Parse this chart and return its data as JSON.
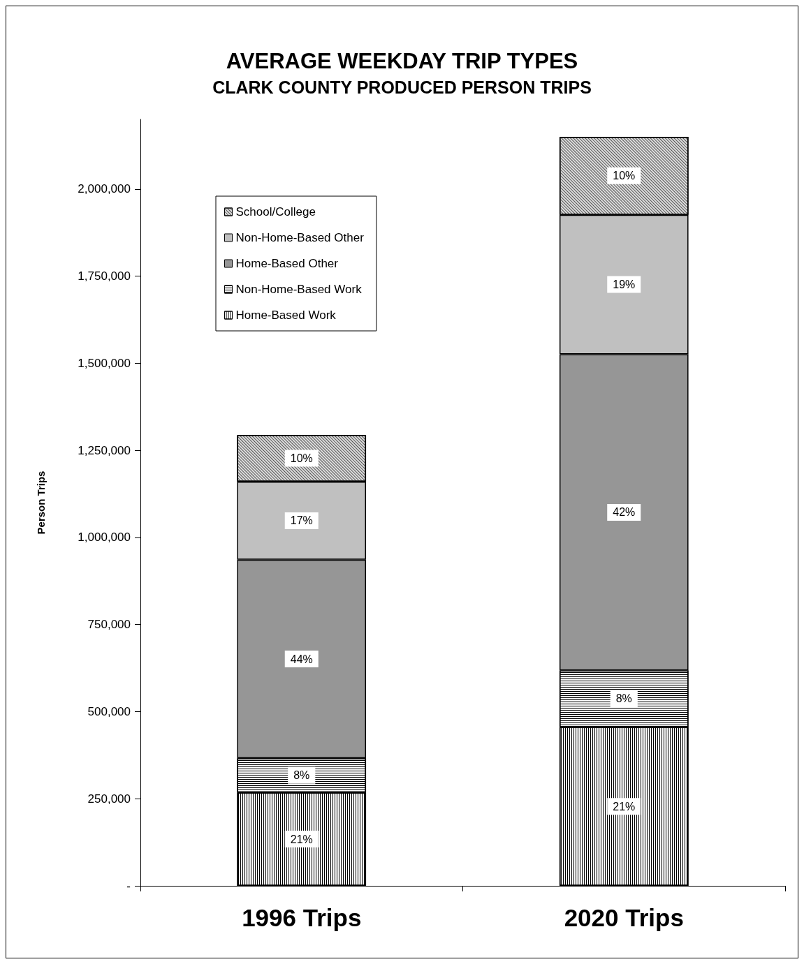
{
  "chart_data": {
    "type": "bar",
    "title": "AVERAGE WEEKDAY TRIP TYPES",
    "subtitle": "CLARK COUNTY PRODUCED PERSON TRIPS",
    "ylabel": "Person Trips",
    "categories": [
      "1996 Trips",
      "2020 Trips"
    ],
    "stacked": true,
    "legend": "top left",
    "grid": false,
    "ylim": [
      0,
      2200000
    ],
    "yticks": [
      {
        "value": 0,
        "label": "-"
      },
      {
        "value": 250000,
        "label": "250,000"
      },
      {
        "value": 500000,
        "label": "500,000"
      },
      {
        "value": 750000,
        "label": "750,000"
      },
      {
        "value": 1000000,
        "label": "1,000,000"
      },
      {
        "value": 1250000,
        "label": "1,250,000"
      },
      {
        "value": 1500000,
        "label": "1,500,000"
      },
      {
        "value": 1750000,
        "label": "1,750,000"
      },
      {
        "value": 2000000,
        "label": "2,000,000"
      }
    ],
    "series": [
      {
        "name": "Home-Based Work",
        "color": "#ffffff",
        "values": [
          268000,
          456000
        ]
      },
      {
        "name": "Non-Home-Based Work",
        "color": "#ffffff",
        "values": [
          98000,
          162000
        ]
      },
      {
        "name": "Home-Based Other",
        "color": "#969696",
        "values": [
          570000,
          908000
        ]
      },
      {
        "name": "Non-Home-Based Other",
        "color": "#c0c0c0",
        "values": [
          224000,
          400000
        ]
      },
      {
        "name": "School/College",
        "color": "#dddddd",
        "values": [
          134000,
          224000
        ]
      }
    ],
    "annotations": [
      "21%",
      "21%",
      "8%",
      "8%",
      "44%",
      "42%",
      "17%",
      "19%",
      "10%",
      "10%"
    ]
  }
}
